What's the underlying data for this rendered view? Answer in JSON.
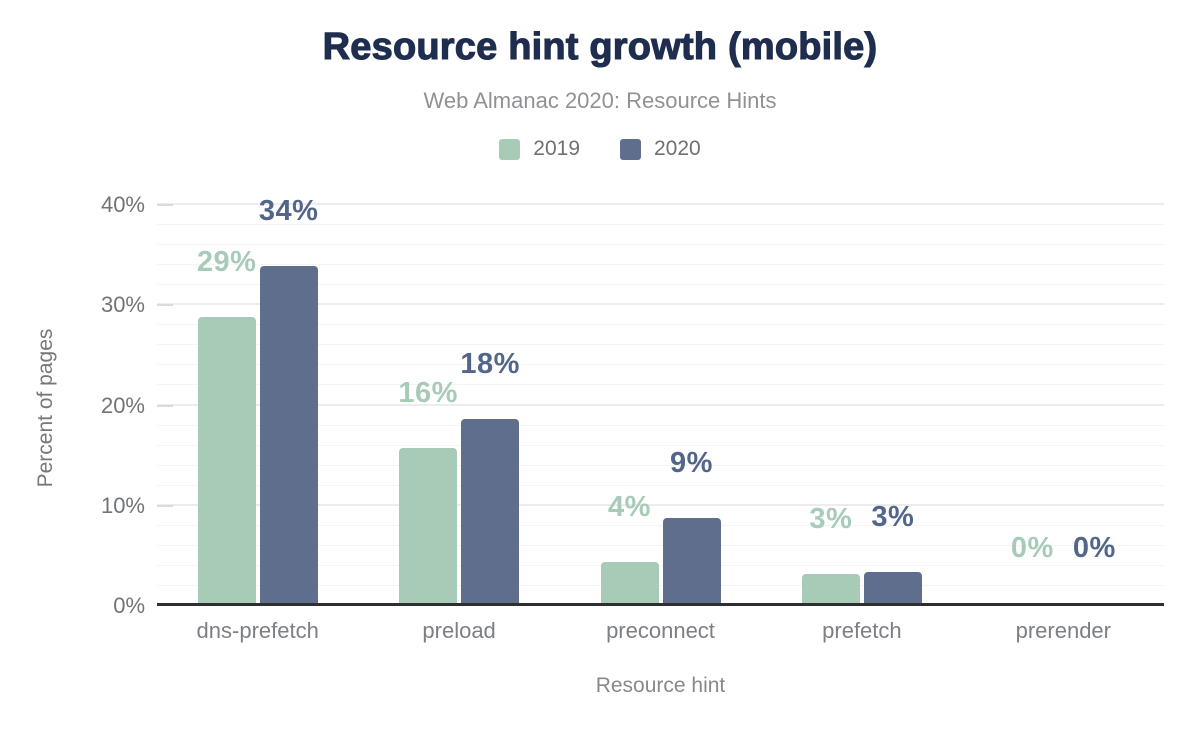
{
  "chart_data": {
    "type": "bar",
    "title": "Resource hint growth (mobile)",
    "subtitle": "Web Almanac 2020: Resource Hints",
    "categories": [
      "dns-prefetch",
      "preload",
      "preconnect",
      "prefetch",
      "prerender"
    ],
    "series": [
      {
        "name": "2019",
        "color": "#a8cbb8",
        "label_color": "#a8cbb8",
        "values": [
          28.5,
          15.5,
          4.1,
          2.9,
          0
        ],
        "labels": [
          "29%",
          "16%",
          "4%",
          "3%",
          "0%"
        ]
      },
      {
        "name": "2020",
        "color": "#5f6e8c",
        "label_color": "#52658a",
        "values": [
          33.6,
          18.4,
          8.5,
          3.1,
          0
        ],
        "labels": [
          "34%",
          "18%",
          "9%",
          "3%",
          "0%"
        ]
      }
    ],
    "xlabel": "Resource hint",
    "ylabel": "Percent of pages",
    "ylim": [
      0,
      40
    ],
    "yticks": [
      0,
      10,
      20,
      30,
      40
    ],
    "ytick_labels": [
      "0%",
      "10%",
      "20%",
      "30%",
      "40%"
    ],
    "minor_grid_step": 2,
    "grid": "on",
    "legend_position": "top"
  },
  "colors": {
    "title": "#1f2d4e",
    "subtitle": "#8f9295",
    "axis_text": "#75787b",
    "axis_line": "#2d2f31",
    "grid_major": "#ececec",
    "grid_minor": "#f5f4f3",
    "background": "#ffffff"
  }
}
